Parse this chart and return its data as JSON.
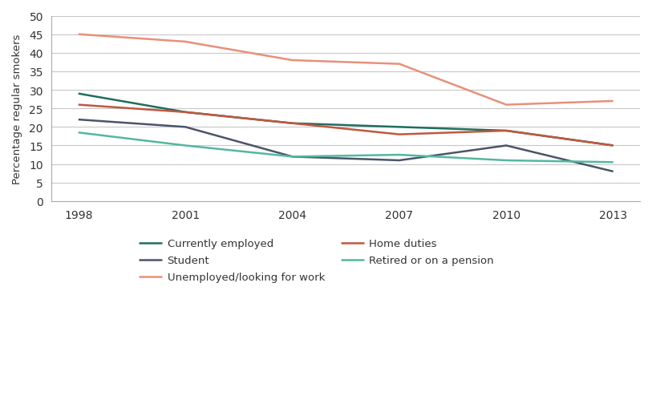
{
  "years": [
    1998,
    2001,
    2004,
    2007,
    2010,
    2013
  ],
  "series": [
    {
      "name": "Currently employed",
      "values": [
        29,
        24,
        21,
        20,
        19,
        15
      ],
      "color": "#1f6e5e",
      "linewidth": 1.8
    },
    {
      "name": "Student",
      "values": [
        22,
        20,
        12,
        11,
        15,
        8
      ],
      "color": "#4a5568",
      "linewidth": 1.8
    },
    {
      "name": "Unemployed/looking for work",
      "values": [
        45,
        43,
        38,
        37,
        26,
        27
      ],
      "color": "#e8907a",
      "linewidth": 1.8
    },
    {
      "name": "Home duties",
      "values": [
        26,
        24,
        21,
        18,
        19,
        15
      ],
      "color": "#c05840",
      "linewidth": 1.8
    },
    {
      "name": "Retired or on a pension",
      "values": [
        18.5,
        15,
        12,
        12.5,
        11,
        10.5
      ],
      "color": "#52b8a0",
      "linewidth": 1.8
    }
  ],
  "ylabel": "Percentage regular smokers",
  "ylim": [
    0,
    50
  ],
  "yticks": [
    0,
    5,
    10,
    15,
    20,
    25,
    30,
    35,
    40,
    45,
    50
  ],
  "xticks": [
    1998,
    2001,
    2004,
    2007,
    2010,
    2013
  ],
  "background_color": "#ffffff",
  "grid_color": "#c8c8c8",
  "legend_rows": [
    [
      "Currently employed",
      "Student"
    ],
    [
      "Unemployed/looking for work",
      "Home duties"
    ],
    [
      "Retired or on a pension"
    ]
  ]
}
